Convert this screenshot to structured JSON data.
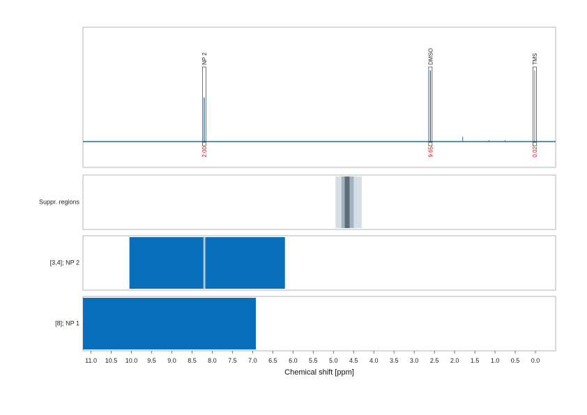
{
  "chart_data": {
    "type": "spectrum",
    "title": "",
    "xlabel": "Chemical shift [ppm]",
    "xlim": [
      11.2,
      -0.5
    ],
    "x_reversed": true,
    "xticks": [
      "11.0",
      "10.5",
      "10.0",
      "9.5",
      "9.0",
      "8.5",
      "8.0",
      "7.5",
      "7.0",
      "6.5",
      "6.0",
      "5.5",
      "5.0",
      "4.5",
      "4.0",
      "3.5",
      "3.0",
      "2.5",
      "2.0",
      "1.5",
      "1.0",
      "0.5",
      "0.0"
    ],
    "grid": true,
    "spectrum": {
      "line_color": "#1f6fa8",
      "peaks": [
        {
          "label": "NP 2",
          "shift": 8.2,
          "height": 0.62,
          "integral": "2.00"
        },
        {
          "label": "DMSO",
          "shift": 2.6,
          "height": 1.0,
          "integral": "9.65"
        },
        {
          "label": "TMS",
          "shift": 0.02,
          "height": 1.0,
          "integral": "0.02"
        }
      ],
      "minor_peaks": [
        {
          "shift": 1.8,
          "height": 0.07
        },
        {
          "shift": 1.15,
          "height": 0.02
        },
        {
          "shift": 0.75,
          "height": 0.02
        }
      ]
    },
    "rows": [
      {
        "label": "Suppr. regions",
        "regions": [
          {
            "from": 4.95,
            "to": 4.3,
            "color": "#d4dee6"
          },
          {
            "from": 4.8,
            "to": 4.5,
            "color": "#a3b3bd"
          },
          {
            "from": 4.72,
            "to": 4.6,
            "color": "#5d6e78"
          }
        ]
      },
      {
        "label": "[3,4]; NP 2",
        "regions": [
          {
            "from": 10.05,
            "to": 6.2,
            "color": "#0a6fba"
          },
          {
            "from": 8.22,
            "to": 8.17,
            "color": "#a9c9df"
          }
        ]
      },
      {
        "label": "[8]; NP 1",
        "regions": [
          {
            "from": 11.2,
            "to": 6.92,
            "color": "#0a6fba"
          }
        ]
      }
    ]
  }
}
